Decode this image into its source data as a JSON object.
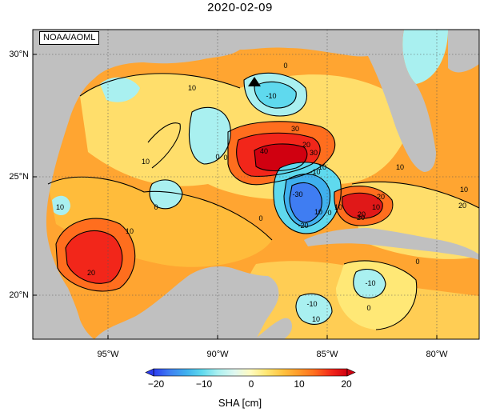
{
  "title": "2020-02-09",
  "credit": "NOAA/AOML",
  "lat_ticks": [
    "30°N",
    "25°N",
    "20°N"
  ],
  "lon_ticks": [
    "95°W",
    "90°W",
    "85°W",
    "80°W"
  ],
  "colorbar": {
    "ticks": [
      "−20",
      "−10",
      "0",
      "10",
      "20"
    ],
    "label": "SHA [cm]",
    "range": [
      -25,
      25
    ],
    "colors": [
      "#2c3df0",
      "#3f7df2",
      "#3fb0ee",
      "#5fd9ee",
      "#a9f0f0",
      "#e0f8f0",
      "#fffbc0",
      "#ffe876",
      "#ffc23f",
      "#ff9a2a",
      "#ff6e1e",
      "#f2261a",
      "#d00010"
    ]
  },
  "map_colors": {
    "land": "#c0c0c0",
    "background": "#ffffff"
  },
  "contour_labels": [
    "10",
    "10",
    "0",
    "10",
    "20",
    "30",
    "40",
    "30",
    "20",
    "10",
    "0",
    "-10",
    "-20",
    "-30",
    "-10",
    "0",
    "10",
    "20",
    "10",
    "20",
    "20",
    "0",
    "0",
    "10",
    "10",
    "20",
    "10",
    "0",
    "-10",
    "-10",
    "0",
    "0",
    "10",
    "10"
  ]
}
